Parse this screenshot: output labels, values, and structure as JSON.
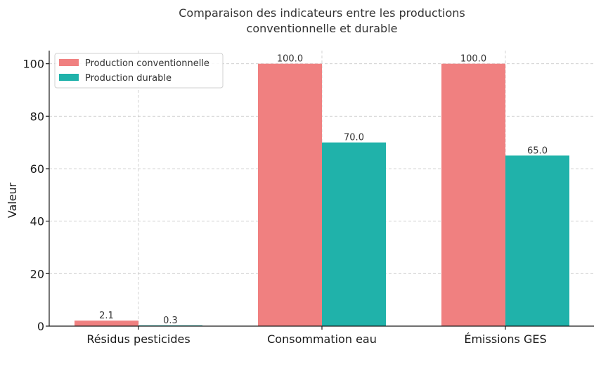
{
  "chart_data": {
    "type": "bar",
    "title": "Comparaison des indicateurs entre les productions\nconventionnelle et durable",
    "title_lines": [
      "Comparaison des indicateurs entre les productions",
      "conventionnelle et durable"
    ],
    "xlabel": "",
    "ylabel": "Valeur",
    "categories": [
      "Résidus pesticides",
      "Consommation eau",
      "Émissions GES"
    ],
    "series": [
      {
        "name": "Production conventionnelle",
        "values": [
          2.1,
          100.0,
          100.0
        ],
        "color": "#f08080"
      },
      {
        "name": "Production durable",
        "values": [
          0.3,
          70.0,
          65.0
        ],
        "color": "#20b2aa"
      }
    ],
    "data_labels": [
      [
        "2.1",
        "100.0",
        "100.0"
      ],
      [
        "0.3",
        "70.0",
        "65.0"
      ]
    ],
    "ylim": [
      0,
      105
    ],
    "yticks": [
      0,
      20,
      40,
      60,
      80,
      100
    ],
    "grid": true,
    "legend_position": "top-left"
  }
}
